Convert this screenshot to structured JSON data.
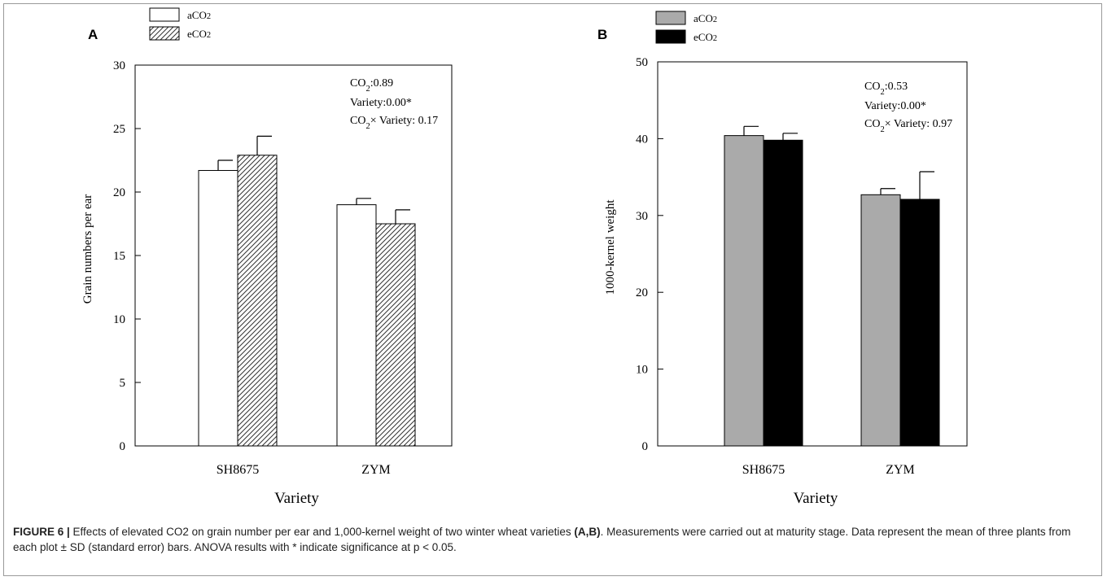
{
  "panels": [
    {
      "label": "A",
      "legend": [
        "aCO2",
        "eCO2"
      ],
      "annotations": [
        "CO2:0.89",
        "Variety:0.00*",
        "CO2× Variety: 0.17"
      ],
      "axis_label_y": "Grain numbers per ear",
      "axis_label_x": "Variety"
    },
    {
      "label": "B",
      "legend": [
        "aCO2",
        "eCO2"
      ],
      "annotations": [
        "CO2:0.53",
        "Variety:0.00*",
        "CO2× Variety: 0.97"
      ],
      "axis_label_y": "1000-kernel weight",
      "axis_label_x": "Variety"
    }
  ],
  "caption": {
    "figure": "FIGURE 6 |",
    "text1": " Effects of elevated CO2 on grain number per ear and 1,000-kernel weight of two winter wheat varieties ",
    "panels": "(A,B)",
    "text2": ". Measurements were carried out at maturity stage. Data represent the mean of three plants from each plot ± SD (standard error) bars. ANOVA results with * indicate significance at p < 0.05."
  },
  "chart_data": [
    {
      "type": "bar",
      "categories": [
        "SH8675",
        "ZYM"
      ],
      "series": [
        {
          "name": "aCO2",
          "values": [
            21.7,
            19.0
          ],
          "errors": [
            0.8,
            0.5
          ],
          "fill": "#ffffff",
          "pattern": "none"
        },
        {
          "name": "eCO2",
          "values": [
            22.9,
            17.5
          ],
          "errors": [
            1.5,
            1.1
          ],
          "fill": "#ffffff",
          "pattern": "hatch"
        }
      ],
      "xlabel": "Variety",
      "ylabel": "Grain numbers per ear",
      "ylim": [
        0,
        30
      ],
      "yticks": [
        0,
        5,
        10,
        15,
        20,
        25,
        30
      ],
      "grid": false,
      "legend": "top-left"
    },
    {
      "type": "bar",
      "categories": [
        "SH8675",
        "ZYM"
      ],
      "series": [
        {
          "name": "aCO2",
          "values": [
            40.4,
            32.7
          ],
          "errors": [
            1.2,
            0.8
          ],
          "fill": "#aaaaaa",
          "pattern": "none"
        },
        {
          "name": "eCO2",
          "values": [
            39.8,
            32.1
          ],
          "errors": [
            0.9,
            3.6
          ],
          "fill": "#000000",
          "pattern": "none"
        }
      ],
      "xlabel": "Variety",
      "ylabel": "1000-kernel weight",
      "ylim": [
        0,
        50
      ],
      "yticks": [
        0,
        10,
        20,
        30,
        40,
        50
      ],
      "grid": false,
      "legend": "top-left"
    }
  ]
}
